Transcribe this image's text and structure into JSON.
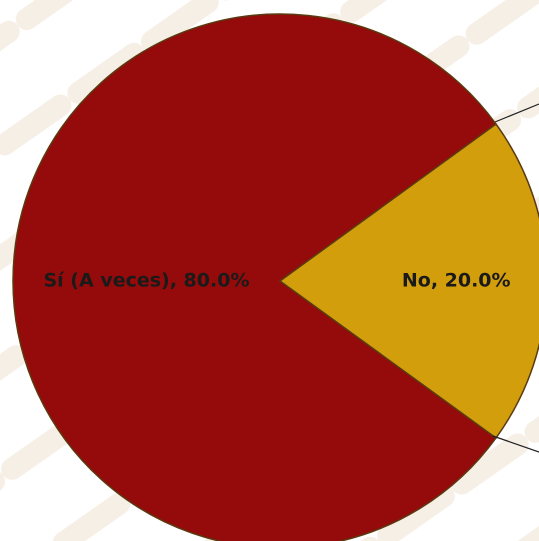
{
  "chart_data": {
    "type": "pie",
    "values": [
      80,
      20
    ],
    "labels": [
      "Sí (A veces), 80.0%",
      "No, 20.0%"
    ],
    "colors": [
      "#950a0a",
      "#d29e0c"
    ]
  }
}
